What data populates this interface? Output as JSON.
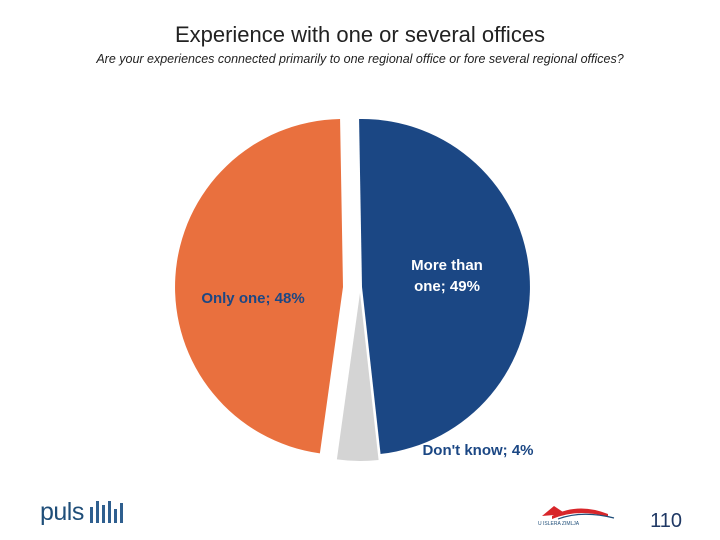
{
  "header": {
    "title": "Experience with one or several offices",
    "subtitle": "Are your experiences connected primarily to one regional office or fore several regional offices?"
  },
  "chart_data": {
    "type": "pie",
    "title": "Experience with one or several offices",
    "subtitle": "Are your experiences connected primarily to one regional office or fore several regional offices?",
    "slices": [
      {
        "label": "More than one; 49%",
        "category": "More than one",
        "value": 49,
        "color": "#1b4784"
      },
      {
        "label": "Don't know; 4%",
        "category": "Don't know",
        "value": 4,
        "color": "#d4d4d4"
      },
      {
        "label": "Only one; 48%",
        "category": "Only one",
        "value": 48,
        "color": "#e9703e"
      }
    ],
    "label_colors": {
      "dark_slice": "#ffffff",
      "light_slice": "#1b4784",
      "outside": "#1b4784"
    }
  },
  "footer": {
    "logo_left": "puls",
    "logo_right_text": "U ISLERA ZIMLJA",
    "page_number": "110"
  }
}
